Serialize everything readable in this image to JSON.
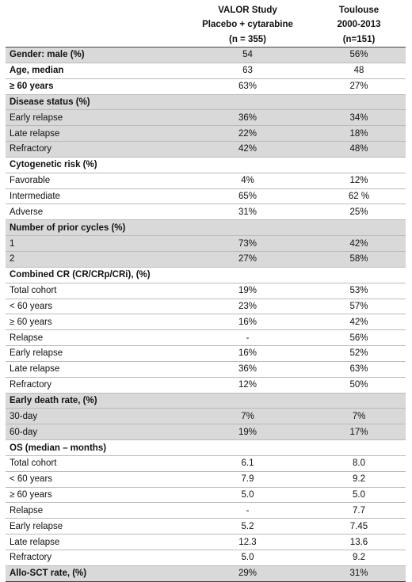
{
  "header": {
    "col1": [
      "VALOR Study",
      "Placebo + cytarabine",
      "(n = 355)"
    ],
    "col2": [
      "Toulouse",
      "2000-2013",
      "(n=151)"
    ]
  },
  "rows": [
    {
      "label": "Gender: male (%)",
      "v1": "54",
      "v2": "56%",
      "bold": true,
      "gray": true
    },
    {
      "label": "Age, median",
      "v1": "63",
      "v2": "48",
      "bold": true,
      "gray": false
    },
    {
      "label": "≥ 60 years",
      "v1": "63%",
      "v2": "27%",
      "bold": true,
      "gray": false
    },
    {
      "label": "Disease status (%)",
      "v1": "",
      "v2": "",
      "bold": true,
      "gray": true
    },
    {
      "label": "Early relapse",
      "v1": "36%",
      "v2": "34%",
      "bold": false,
      "gray": true
    },
    {
      "label": "Late relapse",
      "v1": "22%",
      "v2": "18%",
      "bold": false,
      "gray": true
    },
    {
      "label": "Refractory",
      "v1": "42%",
      "v2": "48%",
      "bold": false,
      "gray": true
    },
    {
      "label": "Cytogenetic risk (%)",
      "v1": "",
      "v2": "",
      "bold": true,
      "gray": false
    },
    {
      "label": "Favorable",
      "v1": "4%",
      "v2": "12%",
      "bold": false,
      "gray": false
    },
    {
      "label": "Intermediate",
      "v1": "65%",
      "v2": "62 %",
      "bold": false,
      "gray": false
    },
    {
      "label": "Adverse",
      "v1": "31%",
      "v2": "25%",
      "bold": false,
      "gray": false
    },
    {
      "label": "Number of prior cycles (%)",
      "v1": "",
      "v2": "",
      "bold": true,
      "gray": true
    },
    {
      "label": "1",
      "v1": "73%",
      "v2": "42%",
      "bold": false,
      "gray": true
    },
    {
      "label": "2",
      "v1": "27%",
      "v2": "58%",
      "bold": false,
      "gray": true
    },
    {
      "label": "Combined CR (CR/CRp/CRi), (%)",
      "v1": "",
      "v2": "",
      "bold": true,
      "gray": false
    },
    {
      "label": "Total cohort",
      "v1": "19%",
      "v2": "53%",
      "bold": false,
      "gray": false
    },
    {
      "label": "< 60 years",
      "v1": "23%",
      "v2": "57%",
      "bold": false,
      "gray": false
    },
    {
      "label": "≥ 60 years",
      "v1": "16%",
      "v2": "42%",
      "bold": false,
      "gray": false
    },
    {
      "label": "Relapse",
      "v1": "-",
      "v2": "56%",
      "bold": false,
      "gray": false
    },
    {
      "label": "Early relapse",
      "v1": "16%",
      "v2": "52%",
      "bold": false,
      "gray": false
    },
    {
      "label": "Late relapse",
      "v1": "36%",
      "v2": "63%",
      "bold": false,
      "gray": false
    },
    {
      "label": "Refractory",
      "v1": "12%",
      "v2": "50%",
      "bold": false,
      "gray": false
    },
    {
      "label": "Early death rate, (%)",
      "v1": "",
      "v2": "",
      "bold": true,
      "gray": true
    },
    {
      "label": "30-day",
      "v1": "7%",
      "v2": "7%",
      "bold": false,
      "gray": true
    },
    {
      "label": "60-day",
      "v1": "19%",
      "v2": "17%",
      "bold": false,
      "gray": true
    },
    {
      "label": "OS (median – months)",
      "v1": "",
      "v2": "",
      "bold": true,
      "gray": false
    },
    {
      "label": "Total cohort",
      "v1": "6.1",
      "v2": "8.0",
      "bold": false,
      "gray": false
    },
    {
      "label": "< 60 years",
      "v1": "7.9",
      "v2": "9.2",
      "bold": false,
      "gray": false
    },
    {
      "label": "≥ 60 years",
      "v1": "5.0",
      "v2": "5.0",
      "bold": false,
      "gray": false
    },
    {
      "label": "Relapse",
      "v1": "-",
      "v2": "7.7",
      "bold": false,
      "gray": false
    },
    {
      "label": "Early relapse",
      "v1": "5.2",
      "v2": "7.45",
      "bold": false,
      "gray": false
    },
    {
      "label": "Late relapse",
      "v1": "12.3",
      "v2": "13.6",
      "bold": false,
      "gray": false
    },
    {
      "label": "Refractory",
      "v1": "5.0",
      "v2": "9.2",
      "bold": false,
      "gray": false
    },
    {
      "label": "Allo-SCT rate, (%)",
      "v1": "29%",
      "v2": "31%",
      "bold": true,
      "gray": true
    }
  ]
}
